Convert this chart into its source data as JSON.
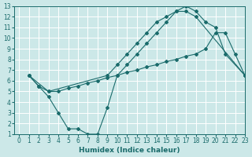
{
  "xlabel": "Humidex (Indice chaleur)",
  "xlim": [
    -0.5,
    23
  ],
  "ylim": [
    1,
    13
  ],
  "xticks": [
    0,
    1,
    2,
    3,
    4,
    5,
    6,
    7,
    8,
    9,
    10,
    11,
    12,
    13,
    14,
    15,
    16,
    17,
    18,
    19,
    20,
    21,
    22,
    23
  ],
  "yticks": [
    1,
    2,
    3,
    4,
    5,
    6,
    7,
    8,
    9,
    10,
    11,
    12,
    13
  ],
  "bg_color": "#cce8e8",
  "line_color": "#1a6b6b",
  "grid_color": "#ffffff",
  "line1_x": [
    1,
    2,
    3,
    4,
    5,
    6,
    7,
    8,
    9,
    10,
    11,
    12,
    13,
    14,
    15,
    16,
    17,
    18,
    19,
    20,
    21,
    22,
    23
  ],
  "line1_y": [
    6.5,
    5.5,
    5.0,
    5.0,
    5.3,
    5.5,
    5.8,
    6.0,
    6.3,
    6.5,
    6.8,
    7.0,
    7.3,
    7.5,
    7.8,
    8.0,
    8.3,
    8.5,
    9.0,
    10.5,
    10.5,
    8.5,
    6.5
  ],
  "line2_x": [
    1,
    3,
    9,
    10,
    11,
    12,
    13,
    14,
    15,
    16,
    17,
    18,
    19,
    20,
    21,
    23
  ],
  "line2_y": [
    6.5,
    5.0,
    6.5,
    7.5,
    8.5,
    9.5,
    10.5,
    11.5,
    12.0,
    12.5,
    13.0,
    12.5,
    11.5,
    11.0,
    8.5,
    6.5
  ],
  "line3_x": [
    1,
    2,
    3,
    4,
    5,
    6,
    7,
    8,
    9,
    10,
    11,
    12,
    13,
    14,
    15,
    16,
    17,
    18,
    23
  ],
  "line3_y": [
    6.5,
    5.5,
    4.5,
    3.0,
    1.5,
    1.5,
    1.0,
    1.0,
    3.5,
    6.5,
    7.5,
    8.5,
    9.5,
    10.5,
    11.5,
    12.5,
    12.5,
    12.0,
    6.5
  ]
}
